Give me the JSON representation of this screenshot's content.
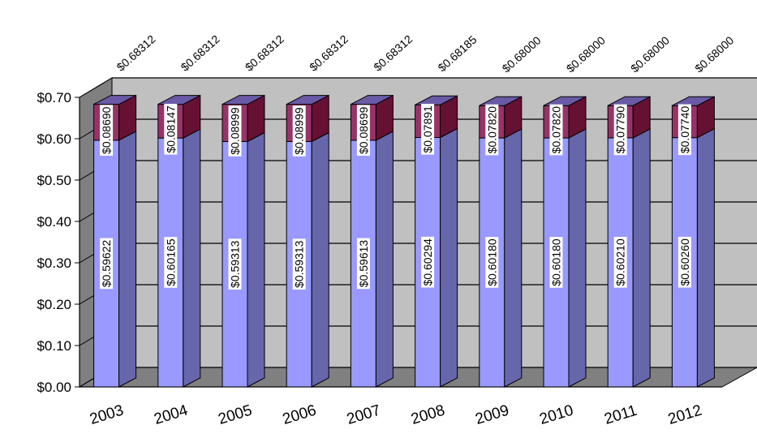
{
  "chart_data": {
    "type": "bar",
    "stacked": true,
    "three_d": true,
    "categories": [
      "2003",
      "2004",
      "2005",
      "2006",
      "2007",
      "2008",
      "2009",
      "2010",
      "2011",
      "2012"
    ],
    "series": [
      {
        "values": [
          0.59622,
          0.60165,
          0.59313,
          0.59313,
          0.59613,
          0.60294,
          0.6018,
          0.6018,
          0.6021,
          0.6026
        ],
        "labels": [
          "$0.59622",
          "$0.60165",
          "$0.59313",
          "$0.59313",
          "$0.59613",
          "$0.60294",
          "$0.60180",
          "$0.60180",
          "$0.60210",
          "$0.60260"
        ],
        "color": "#9999ff"
      },
      {
        "values": [
          0.0869,
          0.08147,
          0.08999,
          0.08999,
          0.08699,
          0.07891,
          0.0782,
          0.0782,
          0.0779,
          0.0774
        ],
        "labels": [
          "$0.08690",
          "$0.08147",
          "$0.08999",
          "$0.08999",
          "$0.08699",
          "$0.07891",
          "$0.07820",
          "$0.07820",
          "$0.07790",
          "$0.07740"
        ],
        "color": "#993366"
      },
      {
        "values": [
          0.0,
          0.0,
          0.0,
          0.0,
          0.0,
          0.0,
          0.0,
          0.0,
          0.0,
          0.0
        ],
        "color": "#6666aa"
      }
    ],
    "totals": [
      0.68312,
      0.68312,
      0.68312,
      0.68312,
      0.68312,
      0.68185,
      0.68,
      0.68,
      0.68,
      0.68
    ],
    "total_labels": [
      "$0.68312",
      "$0.68312",
      "$0.68312",
      "$0.68312",
      "$0.68312",
      "$0.68185",
      "$0.68000",
      "$0.68000",
      "$0.68000",
      "$0.68000"
    ],
    "y_ticks": [
      0,
      0.1,
      0.2,
      0.3,
      0.4,
      0.5,
      0.6,
      0.7
    ],
    "y_tick_labels": [
      "$0.00",
      "$0.10",
      "$0.20",
      "$0.30",
      "$0.40",
      "$0.50",
      "$0.60",
      "$0.70"
    ],
    "ylim": [
      0,
      0.7
    ],
    "grid": true,
    "legend": "none",
    "colors": {
      "wall": "#c0c0c0",
      "side_wall": "#808080",
      "floor": "#808080",
      "grid": "#000000"
    }
  }
}
